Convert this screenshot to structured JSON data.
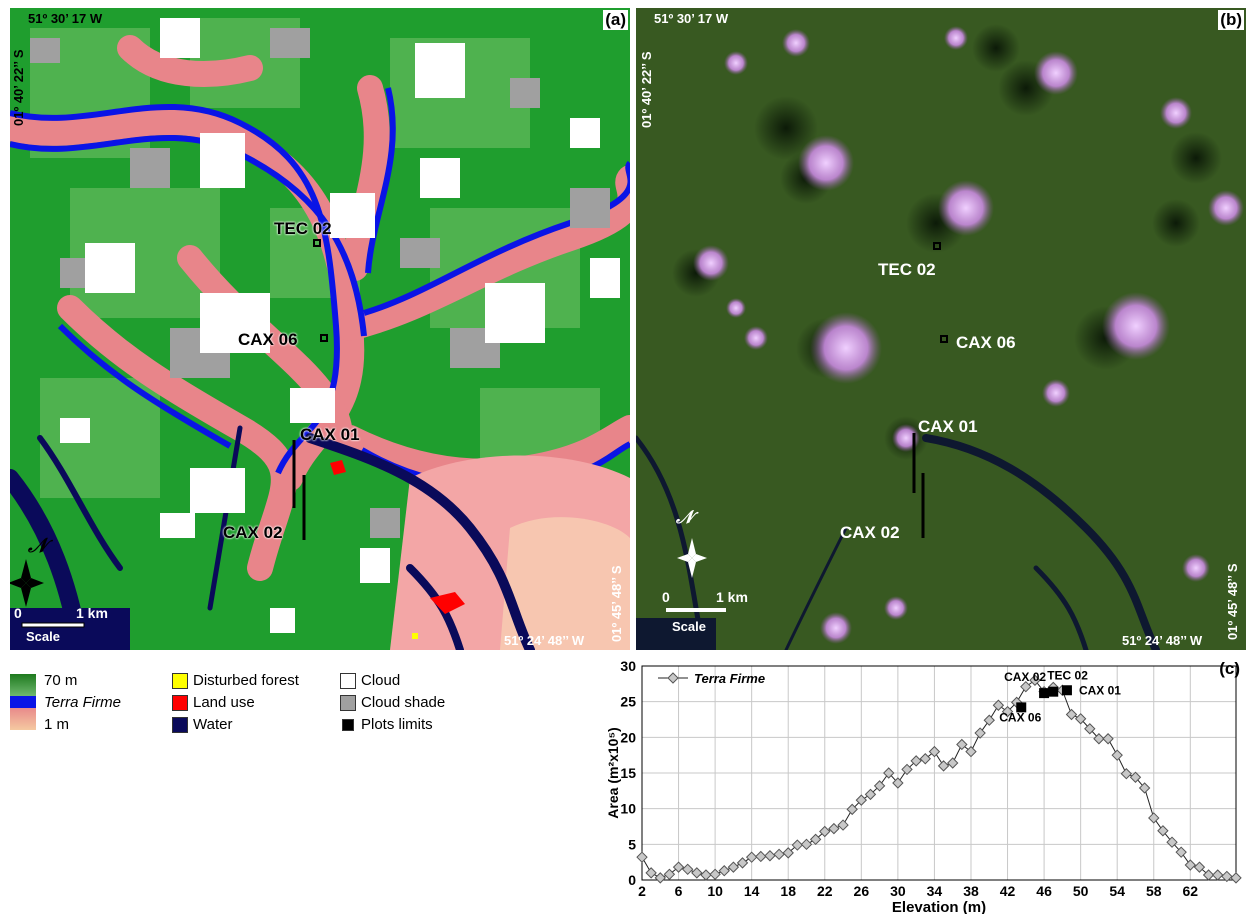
{
  "panel_a": {
    "letter": "(a)",
    "coord_top": "51º 30’ 17 W",
    "coord_left": "01º 40’ 22’’ S",
    "coord_right": "01º 45’ 48’’ S",
    "coord_bottom": "51º 24’ 48’’ W",
    "north_symbol": "𝒩",
    "scale_zero": "0",
    "scale_km": "1 km",
    "scale_label": "Scale",
    "plots": {
      "tec02": "TEC 02",
      "cax06": "CAX 06",
      "cax01": "CAX 01",
      "cax02": "CAX 02"
    }
  },
  "panel_b": {
    "letter": "(b)",
    "coord_top": "51º 30’ 17 W",
    "coord_left": "01º 40’ 22’’ S",
    "coord_right": "01º 45’ 48’’ S",
    "coord_bottom": "51º 24’ 48’’ W",
    "north_symbol": "𝒩",
    "scale_zero": "0",
    "scale_km": "1 km",
    "scale_label": "Scale",
    "plots": {
      "tec02": "TEC 02",
      "cax06": "CAX 06",
      "cax01": "CAX 01",
      "cax02": "CAX 02"
    }
  },
  "legend": {
    "elev_high": "70 m",
    "elev_mid": "Terra Firme",
    "elev_low": "1 m",
    "disturbed": "Disturbed forest",
    "land_use": "Land use",
    "water": "Water",
    "cloud": "Cloud",
    "cloud_shade": "Cloud shade",
    "plots_limits": "Plots limits",
    "colors": {
      "high": "#2a8a2a",
      "terra_firme": "#0a14e6",
      "low": "#f5c9a0",
      "disturbed": "#ffff00",
      "land_use": "#ff0000",
      "water": "#0a0a5a",
      "cloud": "#ffffff",
      "cloud_shade": "#a0a0a0",
      "plots": "#000000"
    }
  },
  "chart_data": {
    "type": "line",
    "panel_letter": "(c)",
    "xlabel": "Elevation (m)",
    "ylabel": "Area (m²x10⁵)",
    "legend": "Terra Firme",
    "xlim": [
      2,
      67
    ],
    "ylim": [
      0,
      30
    ],
    "xticks": [
      2,
      6,
      10,
      14,
      18,
      22,
      26,
      30,
      34,
      38,
      42,
      46,
      50,
      54,
      58,
      62
    ],
    "yticks": [
      0,
      5,
      10,
      15,
      20,
      25,
      30
    ],
    "grid": true,
    "series": [
      {
        "name": "Terra Firme",
        "x": [
          2,
          3,
          4,
          5,
          6,
          7,
          8,
          9,
          10,
          11,
          12,
          13,
          14,
          15,
          16,
          17,
          18,
          19,
          20,
          21,
          22,
          23,
          24,
          25,
          26,
          27,
          28,
          29,
          30,
          31,
          32,
          33,
          34,
          35,
          36,
          37,
          38,
          39,
          40,
          41,
          42,
          43,
          44,
          45,
          46,
          47,
          48,
          49,
          50,
          51,
          52,
          53,
          54,
          55,
          56,
          57,
          58,
          59,
          60,
          61,
          62,
          63,
          64,
          65,
          66,
          67
        ],
        "y": [
          3.2,
          1.0,
          0.3,
          0.8,
          1.8,
          1.5,
          1.0,
          0.7,
          0.8,
          1.3,
          1.8,
          2.4,
          3.2,
          3.3,
          3.4,
          3.6,
          3.8,
          4.9,
          5.0,
          5.7,
          6.8,
          7.2,
          7.7,
          9.9,
          11.2,
          12.0,
          13.2,
          15.0,
          13.6,
          15.5,
          16.7,
          17.0,
          18.0,
          16.0,
          16.4,
          19.0,
          18.0,
          20.6,
          22.4,
          24.5,
          23.6,
          24.9,
          27.1,
          28.0,
          26.4,
          27.0,
          26.6,
          23.2,
          22.6,
          21.2,
          19.8,
          19.8,
          17.5,
          14.9,
          14.4,
          12.9,
          8.7,
          6.9,
          5.3,
          3.9,
          2.1,
          1.8,
          0.7,
          0.7,
          0.5,
          0.3
        ]
      }
    ],
    "plot_markers": [
      {
        "label": "CAX 06",
        "x": 43.5,
        "y": 24.2
      },
      {
        "label": "CAX 02",
        "x": 46,
        "y": 26.2
      },
      {
        "label": "TEC 02",
        "x": 47,
        "y": 26.4
      },
      {
        "label": "CAX 01",
        "x": 48.5,
        "y": 26.6
      }
    ]
  }
}
